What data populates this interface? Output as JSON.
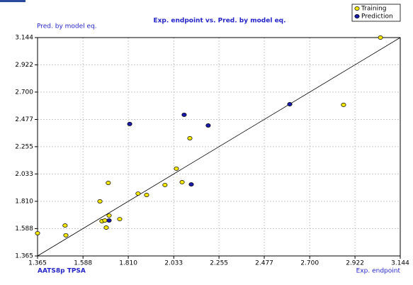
{
  "chart_data": {
    "type": "scatter",
    "title": "Exp. endpoint vs. Pred. by model eq.",
    "y_label": "Pred. by model eq.",
    "x_label": "Exp. endpoint",
    "descriptor_label": "AATS8p TPSA",
    "legend_position": "top-right",
    "grid": true,
    "xlim": [
      1.365,
      3.144
    ],
    "ylim": [
      1.365,
      3.144
    ],
    "xticks": [
      1.365,
      1.588,
      {
        "value": 1.81,
        "label": "1.810"
      },
      2.033,
      2.255,
      2.477,
      {
        "value": 2.7,
        "label": "2.700"
      },
      2.922,
      3.144
    ],
    "yticks": [
      1.365,
      1.588,
      {
        "value": 1.81,
        "label": "1.810"
      },
      2.033,
      2.255,
      2.477,
      {
        "value": 2.7,
        "label": "2.700"
      },
      2.922,
      3.144
    ],
    "series": [
      {
        "name": "Training",
        "color": "#f2e600",
        "x": [
          1.365,
          1.5,
          1.504,
          1.671,
          1.681,
          1.695,
          1.702,
          1.716,
          1.712,
          1.768,
          1.858,
          1.9,
          1.99,
          2.046,
          2.074,
          2.112,
          2.866,
          3.047
        ],
        "values": [
          1.55,
          1.613,
          1.533,
          1.81,
          1.648,
          1.654,
          1.596,
          1.694,
          1.96,
          1.665,
          1.873,
          1.862,
          1.943,
          2.076,
          1.966,
          2.324,
          2.596,
          3.144
        ]
      },
      {
        "name": "Prediction",
        "color": "#1a1aa8",
        "x": [
          1.716,
          1.817,
          2.084,
          2.119,
          2.202,
          2.602
        ],
        "values": [
          1.654,
          2.44,
          2.515,
          1.948,
          2.428,
          2.601
        ]
      }
    ]
  }
}
